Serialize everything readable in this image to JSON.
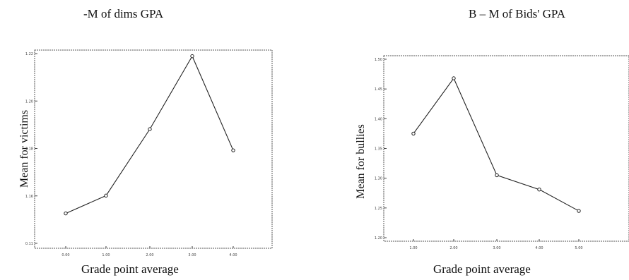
{
  "chart_data": [
    {
      "type": "line",
      "title": "-M of dims GPA",
      "xlabel": "Grade point average",
      "ylabel": "Mean for victims",
      "categories": [
        "0.00",
        "1.00",
        "2.00",
        "3.00",
        "4.00"
      ],
      "yticks": [
        "0.11",
        "1.16",
        "1.18",
        "1.20",
        "1.22"
      ],
      "ylim": [
        0.11,
        1.22
      ],
      "values": [
        0.285,
        0.389,
        0.778,
        1.205,
        0.654
      ],
      "grid": false,
      "legend": "none",
      "color": "#222222"
    },
    {
      "type": "line",
      "title": "B – M of Bids' GPA",
      "xlabel": "Grade point average",
      "ylabel": "Mean for bullies",
      "categories": [
        "1.00",
        "2.00",
        "3.00",
        "4.00",
        "5.00"
      ],
      "yticks": [
        "1.20",
        "1.25",
        "1.30",
        "1.35",
        "1.40",
        "1.45",
        "1.50"
      ],
      "ylim": [
        1.2,
        1.5
      ],
      "values": [
        1.375,
        1.468,
        1.305,
        1.281,
        1.245
      ],
      "grid": false,
      "legend": "none",
      "color": "#222222"
    }
  ]
}
